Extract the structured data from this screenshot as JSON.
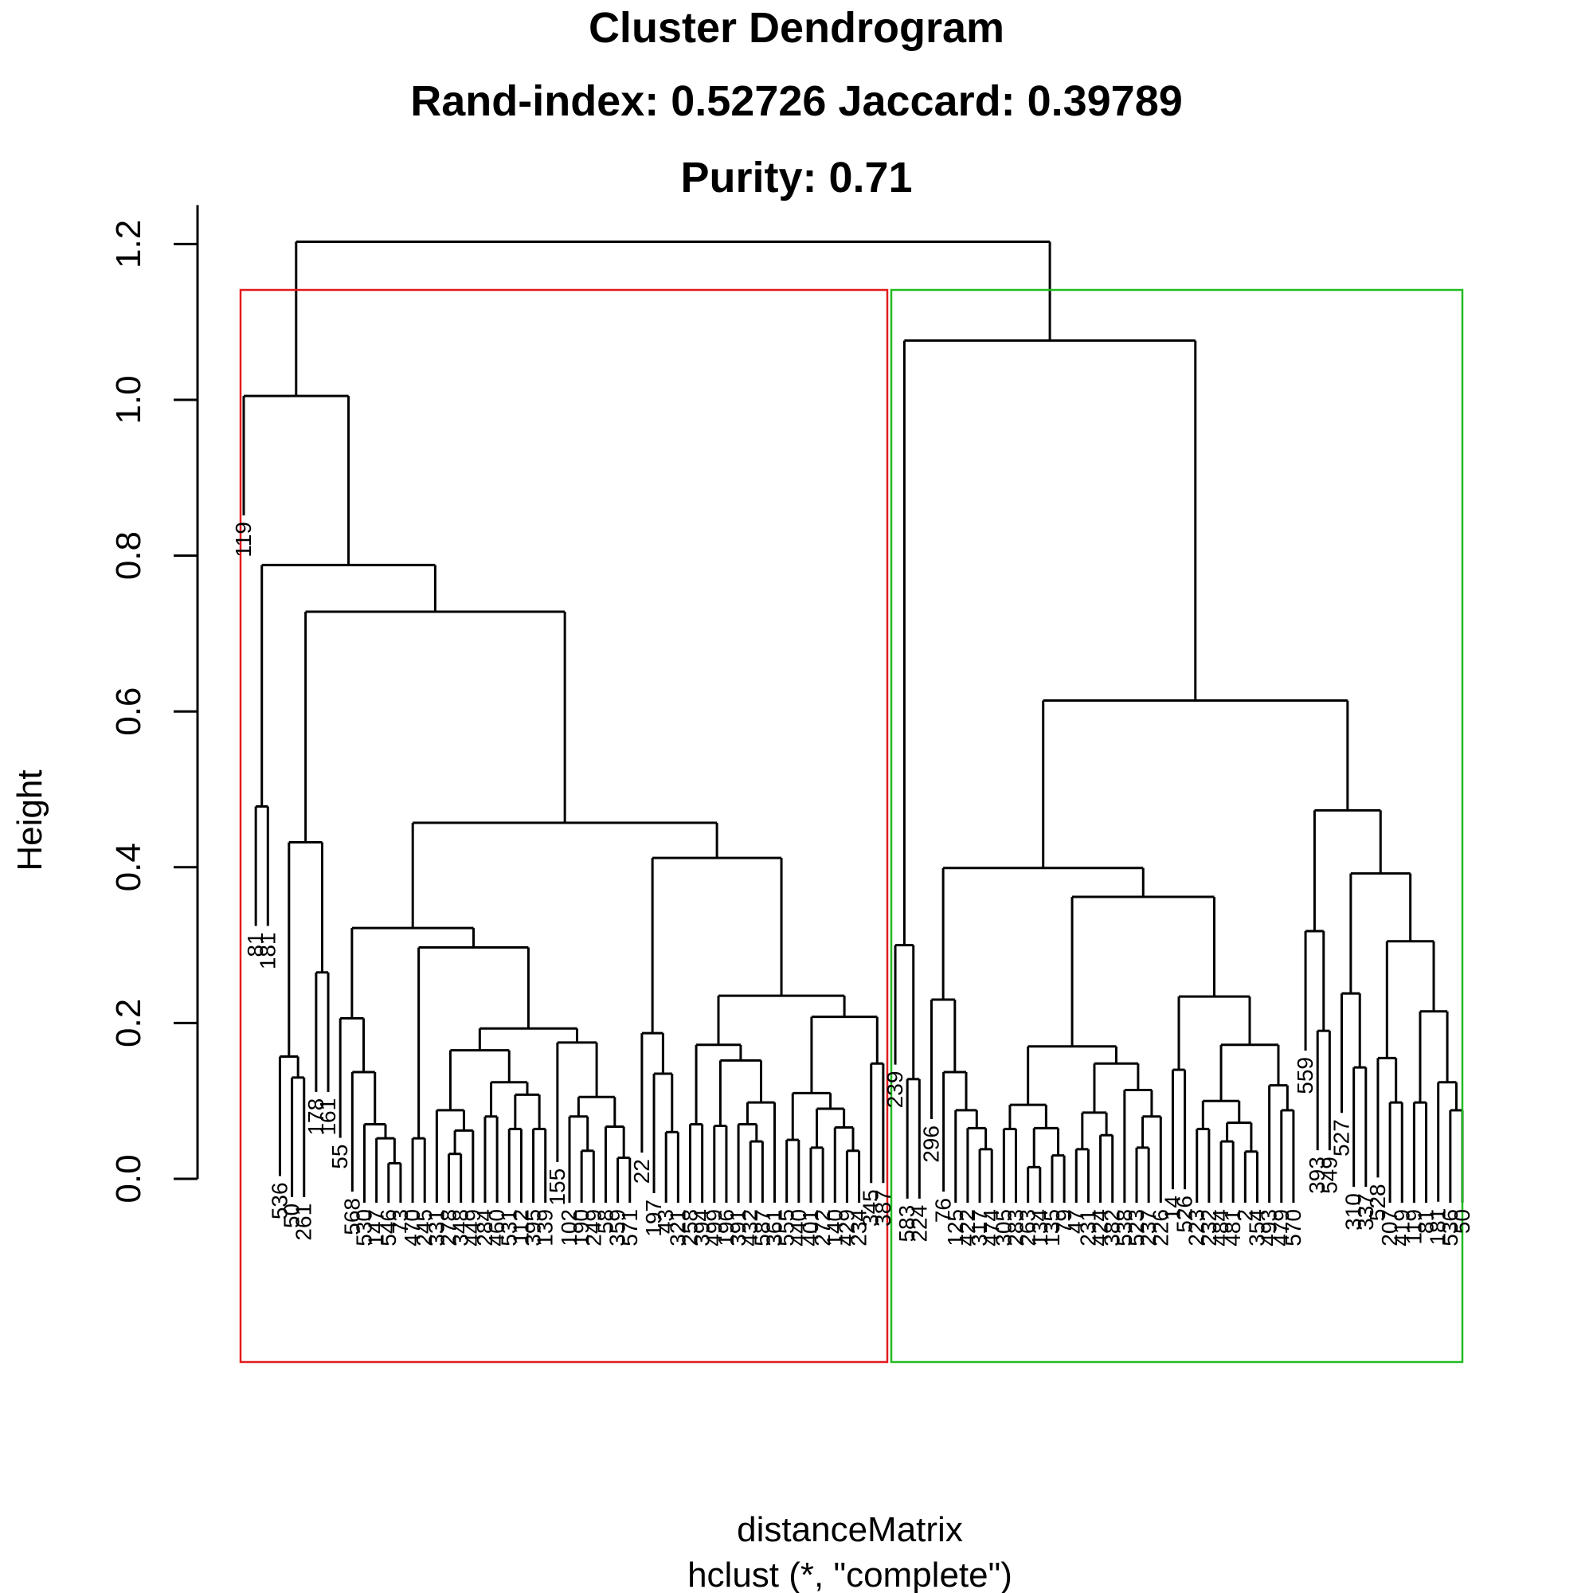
{
  "chart_data": {
    "type": "dendrogram",
    "title": "Cluster Dendrogram",
    "subtitle_line1": "Rand-index: 0.52726  Jaccard: 0.39789",
    "subtitle_line2": "Purity: 0.71",
    "xlabel": "distanceMatrix",
    "xsublabel": "hclust (*, \"complete\")",
    "ylabel": "Height",
    "ylim": [
      0,
      1.25
    ],
    "y_ticks": [
      "0.0",
      "0.2",
      "0.4",
      "0.6",
      "0.8",
      "1.0",
      "1.2"
    ],
    "linkage": "complete",
    "cut_clusters": [
      {
        "color": "#e31a1c",
        "label": "cluster-1"
      },
      {
        "color": "#22bb22",
        "label": "cluster-2"
      }
    ],
    "leaves": [
      "119",
      "81",
      "181",
      "536",
      "50",
      "261",
      "178",
      "161",
      "55",
      "568",
      "530",
      "147",
      "546",
      "73",
      "470",
      "245",
      "331",
      "278",
      "348",
      "449",
      "284",
      "460",
      "531",
      "112",
      "395",
      "139",
      "155",
      "102",
      "190",
      "249",
      "58",
      "359",
      "571",
      "22",
      "197",
      "43",
      "321",
      "258",
      "394",
      "499",
      "196",
      "391",
      "432",
      "587",
      "361",
      "555",
      "440",
      "401",
      "272",
      "140",
      "429",
      "234",
      "345",
      "387",
      "239",
      "583",
      "224",
      "296",
      "76",
      "125",
      "422",
      "317",
      "474",
      "305",
      "283",
      "263",
      "134",
      "135",
      "79",
      "47",
      "231",
      "424",
      "382",
      "538",
      "523",
      "237",
      "226",
      "14",
      "526",
      "223",
      "232",
      "484",
      "481",
      "2",
      "354",
      "493",
      "479",
      "570",
      "559",
      "393",
      "549",
      "527",
      "310",
      "337",
      "528",
      "207",
      "419"
    ],
    "merges": [
      {
        "height": 1.203,
        "children": [
          "L",
          "R"
        ]
      },
      {
        "height": 1.005,
        "cluster": 1
      },
      {
        "height": 0.788,
        "cluster": 1
      },
      {
        "height": 0.728,
        "cluster": 1
      },
      {
        "height": 0.457,
        "cluster": 1
      },
      {
        "height": 0.412,
        "cluster": 1
      },
      {
        "height": 0.322,
        "cluster": 1
      },
      {
        "height": 0.297,
        "cluster": 1
      },
      {
        "height": 1.076,
        "cluster": 2
      },
      {
        "height": 0.614,
        "cluster": 2
      },
      {
        "height": 0.473,
        "cluster": 2
      },
      {
        "height": 0.399,
        "cluster": 2
      },
      {
        "height": 0.392,
        "cluster": 2
      },
      {
        "height": 0.362,
        "cluster": 2
      }
    ]
  }
}
